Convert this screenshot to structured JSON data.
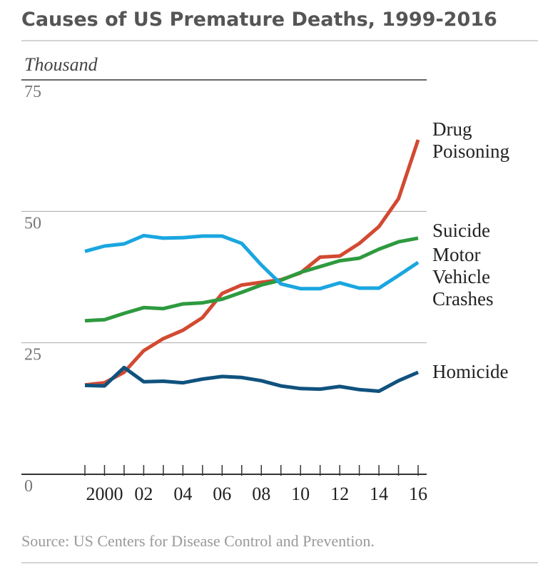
{
  "chart_data": {
    "type": "line",
    "title": "Causes of US Premature Deaths, 1999-2016",
    "y_label": "Thousand",
    "source": "Source: US Centers for Disease Control and Prevention.",
    "x": [
      1999,
      2000,
      2001,
      2002,
      2003,
      2004,
      2005,
      2006,
      2007,
      2008,
      2009,
      2010,
      2011,
      2012,
      2013,
      2014,
      2015,
      2016
    ],
    "xlim": [
      1999,
      2016
    ],
    "xticks": [
      2000,
      {
        "value": 2002,
        "label": "02"
      },
      {
        "value": 2004,
        "label": "04"
      },
      {
        "value": 2006,
        "label": "06"
      },
      {
        "value": 2008,
        "label": "08"
      },
      {
        "value": 2010,
        "label": "10"
      },
      {
        "value": 2012,
        "label": "12"
      },
      {
        "value": 2014,
        "label": "14"
      },
      {
        "value": 2016,
        "label": "16"
      }
    ],
    "ylim": [
      0,
      75
    ],
    "yticks": [
      0,
      25,
      50,
      75
    ],
    "grid": true,
    "series": [
      {
        "name": "Drug Poisoning",
        "color": "#d24a32",
        "values": [
          17.0,
          17.4,
          19.4,
          23.5,
          25.8,
          27.4,
          29.8,
          34.4,
          36.0,
          36.5,
          37.0,
          38.3,
          41.3,
          41.5,
          43.9,
          47.1,
          52.4,
          63.6
        ]
      },
      {
        "name": "Suicide",
        "color": "#2e9a3f",
        "values": [
          29.2,
          29.4,
          30.6,
          31.7,
          31.5,
          32.4,
          32.6,
          33.3,
          34.6,
          36.0,
          36.9,
          38.4,
          39.5,
          40.6,
          41.1,
          42.8,
          44.2,
          44.9
        ]
      },
      {
        "name": "Motor Vehicle Crashes",
        "color": "#1aa6e0",
        "values": [
          42.4,
          43.4,
          43.8,
          45.4,
          44.9,
          45.0,
          45.3,
          45.3,
          43.9,
          39.8,
          36.2,
          35.3,
          35.3,
          36.4,
          35.4,
          35.4,
          37.8,
          40.3
        ]
      },
      {
        "name": "Homicide",
        "color": "#10527e",
        "values": [
          16.9,
          16.8,
          20.3,
          17.6,
          17.7,
          17.4,
          18.1,
          18.6,
          18.4,
          17.8,
          16.8,
          16.3,
          16.2,
          16.7,
          16.1,
          15.8,
          17.8,
          19.4
        ]
      }
    ]
  }
}
